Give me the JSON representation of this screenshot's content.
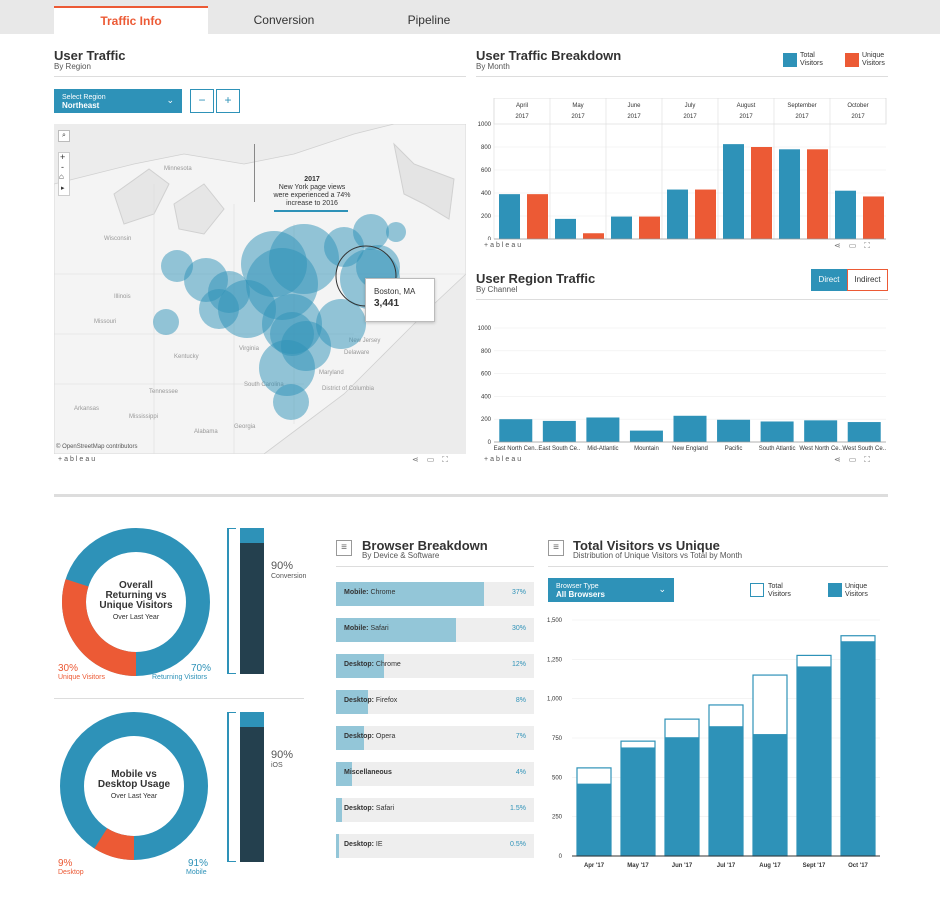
{
  "tabs": [
    {
      "label": "Traffic Info",
      "active": true
    },
    {
      "label": "Conversion",
      "active": false
    },
    {
      "label": "Pipeline",
      "active": false
    }
  ],
  "user_traffic": {
    "title": "User Traffic",
    "subtitle": "By Region",
    "select_label": "Select Region",
    "select_value": "Northeast",
    "minus": "−",
    "plus": "+",
    "callout_year": "2017",
    "callout_text": "New York page views were experienced a 74% increase to 2016",
    "tooltip_city": "Boston, MA",
    "tooltip_value": "3,441",
    "map_labels": [
      "Wisconsin",
      "Illinois",
      "Missouri",
      "Kentucky",
      "Tennessee",
      "Arkansas",
      "Mississippi",
      "Alabama",
      "Georgia",
      "South Carolina",
      "Virginia",
      "Maryland",
      "Delaware",
      "New Jersey",
      "District of Columbia",
      "Minnesota"
    ],
    "attribution": "© OpenStreetMap contributors",
    "footer": "+ableau"
  },
  "breakdown": {
    "title": "User Traffic Breakdown",
    "subtitle": "By Month",
    "legend": [
      "Total Visitors",
      "Unique Visitors"
    ],
    "footer": "+ableau"
  },
  "region_traffic": {
    "title": "User Region Traffic",
    "subtitle": "By Channel",
    "toggle_direct": "Direct",
    "toggle_indirect": "Indirect",
    "footer": "+ableau"
  },
  "donut1": {
    "title_lines": [
      "Overall",
      "Returning vs",
      "Unique Visitors"
    ],
    "sub": "Over Last Year",
    "left_pct": "30%",
    "left_label": "Unique Visitors",
    "right_pct": "70%",
    "right_label": "Returning Visitors",
    "side_pct": "90%",
    "side_label": "Conversion",
    "unique_share": 30,
    "side_level": 90
  },
  "donut2": {
    "title_lines": [
      "Mobile vs",
      "Desktop Usage"
    ],
    "sub": "Over Last Year",
    "left_pct": "9%",
    "left_label": "Desktop",
    "right_pct": "91%",
    "right_label": "Mobile",
    "side_pct": "90%",
    "side_label": "iOS",
    "desktop_share": 9,
    "side_level": 90
  },
  "browser": {
    "title": "Browser Breakdown",
    "subtitle": "By Device & Software",
    "rows": [
      {
        "device": "Mobile:",
        "browser": "Chrome",
        "value": "37%",
        "share": 37
      },
      {
        "device": "Mobile:",
        "browser": "Safari",
        "value": "30%",
        "share": 30
      },
      {
        "device": "Desktop:",
        "browser": "Chrome",
        "value": "12%",
        "share": 12
      },
      {
        "device": "Desktop:",
        "browser": "Firefox",
        "value": "8%",
        "share": 8
      },
      {
        "device": "Desktop:",
        "browser": "Opera",
        "value": "7%",
        "share": 7
      },
      {
        "device": "Miscellaneous",
        "browser": "",
        "value": "4%",
        "share": 4
      },
      {
        "device": "Desktop:",
        "browser": "Safari",
        "value": "1.5%",
        "share": 1.5
      },
      {
        "device": "Desktop:",
        "browser": "IE",
        "value": "0.5%",
        "share": 0.5
      }
    ]
  },
  "tvu": {
    "title": "Total Visitors vs Unique",
    "subtitle": "Distribution of Unique Visitors vs Total by Month",
    "select_label": "Browser Type",
    "select_value": "All Browsers",
    "legend_total": "Total Visitors",
    "legend_unique": "Unique Visitors"
  },
  "colors": {
    "blue": "#2e92b8",
    "orange": "#ec5a35",
    "dark": "#24404e",
    "light_blue": "#93c6d8"
  },
  "chart_data": [
    {
      "type": "bar",
      "title": "User Traffic Breakdown",
      "categories": [
        "April 2017",
        "May 2017",
        "June 2017",
        "July 2017",
        "August 2017",
        "September 2017",
        "October 2017"
      ],
      "cat_top": [
        "April",
        "May",
        "June",
        "July",
        "August",
        "September",
        "October"
      ],
      "cat_bottom": [
        "2017",
        "2017",
        "2017",
        "2017",
        "2017",
        "2017",
        "2017"
      ],
      "series": [
        {
          "name": "Total Visitors",
          "values": [
            390,
            175,
            195,
            430,
            825,
            780,
            420
          ],
          "color": "#2e92b8"
        },
        {
          "name": "Unique Visitors",
          "values": [
            390,
            50,
            195,
            430,
            800,
            780,
            370
          ],
          "color": "#ec5a35"
        }
      ],
      "ylim": [
        0,
        1000
      ],
      "yticks": [
        0,
        200,
        400,
        600,
        800,
        1000
      ]
    },
    {
      "type": "bar",
      "title": "User Region Traffic",
      "categories": [
        "East North Cen..",
        "East South Ce..",
        "Mid-Atlantic",
        "Mountain",
        "New England",
        "Pacific",
        "South Atlantic",
        "West North Ce..",
        "West South Ce.."
      ],
      "values": [
        200,
        185,
        215,
        100,
        230,
        195,
        180,
        190,
        175
      ],
      "ylim": [
        0,
        1000
      ],
      "yticks": [
        0,
        200,
        400,
        600,
        800,
        1000
      ]
    },
    {
      "type": "bar",
      "title": "Total Visitors vs Unique",
      "categories": [
        "Apr '17",
        "May '17",
        "Jun '17",
        "Jul '17",
        "Aug '17",
        "Sept '17",
        "Oct '17"
      ],
      "series": [
        {
          "name": "Total Visitors",
          "values": [
            560,
            730,
            870,
            960,
            1150,
            1275,
            1400
          ]
        },
        {
          "name": "Unique Visitors",
          "values": [
            460,
            690,
            755,
            825,
            775,
            1205,
            1365
          ]
        }
      ],
      "ylim": [
        0,
        1500
      ],
      "yticks": [
        0,
        250,
        500,
        750,
        1000,
        1250,
        1500
      ],
      "yticklabels": [
        "0",
        "250",
        "500",
        "750",
        "1,000",
        "1,250",
        "1,500"
      ]
    }
  ]
}
